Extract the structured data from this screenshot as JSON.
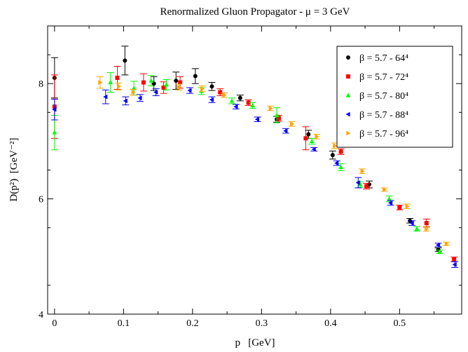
{
  "chart_data": {
    "type": "scatter",
    "title": "Renormalized Gluon Propagator - μ = 3 GeV",
    "xlabel": "p   [GeV]",
    "ylabel": "D(p²)  [GeV⁻²]",
    "xlim": [
      -0.01,
      0.59
    ],
    "ylim": [
      4,
      9
    ],
    "xticks": [
      0,
      0.1,
      0.2,
      0.3,
      0.4,
      0.5
    ],
    "xtick_labels": [
      "0",
      "0.1",
      "0.2",
      "0.3",
      "0.4",
      "0.5"
    ],
    "yticks": [
      4,
      6,
      8
    ],
    "ytick_labels": [
      "4",
      "6",
      "8"
    ],
    "grid": false,
    "legend_position": "top-right",
    "series": [
      {
        "name": "β = 5.7  -  64⁴",
        "color": "#000000",
        "marker": "circle",
        "points": [
          [
            0,
            8.1,
            0.35
          ],
          [
            0.102,
            8.4,
            0.25
          ],
          [
            0.144,
            8.0,
            0.12
          ],
          [
            0.176,
            8.05,
            0.15
          ],
          [
            0.204,
            8.13,
            0.13
          ],
          [
            0.228,
            7.95,
            0.07
          ],
          [
            0.269,
            7.75,
            0.05
          ],
          [
            0.322,
            7.38,
            0.05
          ],
          [
            0.368,
            7.12,
            0.07
          ],
          [
            0.403,
            6.76,
            0.07
          ],
          [
            0.456,
            6.25,
            0.06
          ],
          [
            0.515,
            5.62,
            0.04
          ],
          [
            0.556,
            5.12,
            0.03
          ]
        ]
      },
      {
        "name": "β = 5.7  -  72⁴",
        "color": "#ff0000",
        "marker": "square",
        "points": [
          [
            0,
            7.6,
            0.55
          ],
          [
            0.091,
            8.1,
            0.2
          ],
          [
            0.129,
            8.02,
            0.15
          ],
          [
            0.158,
            7.93,
            0.1
          ],
          [
            0.182,
            8.02,
            0.1
          ],
          [
            0.24,
            7.85,
            0.06
          ],
          [
            0.281,
            7.67,
            0.05
          ],
          [
            0.325,
            7.4,
            0.05
          ],
          [
            0.364,
            7.05,
            0.2
          ],
          [
            0.415,
            6.82,
            0.05
          ],
          [
            0.452,
            6.22,
            0.05
          ],
          [
            0.5,
            5.85,
            0.04
          ],
          [
            0.539,
            5.58,
            0.07
          ],
          [
            0.579,
            4.95,
            0.04
          ]
        ]
      },
      {
        "name": "β = 5.7  -  80⁴",
        "color": "#00ff00",
        "marker": "triangle",
        "points": [
          [
            0,
            7.15,
            0.3
          ],
          [
            0.081,
            8.02,
            0.17
          ],
          [
            0.115,
            7.92,
            0.12
          ],
          [
            0.14,
            8.05,
            0.09
          ],
          [
            0.162,
            7.98,
            0.09
          ],
          [
            0.213,
            7.87,
            0.06
          ],
          [
            0.257,
            7.7,
            0.05
          ],
          [
            0.287,
            7.62,
            0.05
          ],
          [
            0.322,
            7.45,
            0.13
          ],
          [
            0.373,
            7.0,
            0.05
          ],
          [
            0.415,
            6.55,
            0.06
          ],
          [
            0.443,
            6.25,
            0.05
          ],
          [
            0.485,
            6.0,
            0.05
          ],
          [
            0.525,
            5.48,
            0.04
          ],
          [
            0.558,
            5.08,
            0.03
          ]
        ]
      },
      {
        "name": "β = 5.7  -  88⁴",
        "color": "#0000ff",
        "marker": "triangle-left",
        "points": [
          [
            0,
            7.55,
            0.18
          ],
          [
            0.074,
            7.77,
            0.12
          ],
          [
            0.103,
            7.7,
            0.07
          ],
          [
            0.124,
            7.75,
            0.06
          ],
          [
            0.147,
            7.85,
            0.06
          ],
          [
            0.196,
            7.88,
            0.05
          ],
          [
            0.228,
            7.72,
            0.05
          ],
          [
            0.263,
            7.6,
            0.04
          ],
          [
            0.294,
            7.38,
            0.04
          ],
          [
            0.335,
            7.18,
            0.04
          ],
          [
            0.376,
            6.86,
            0.03
          ],
          [
            0.409,
            6.62,
            0.04
          ],
          [
            0.44,
            6.28,
            0.09
          ],
          [
            0.487,
            5.93,
            0.04
          ],
          [
            0.518,
            5.58,
            0.04
          ],
          [
            0.556,
            5.2,
            0.03
          ],
          [
            0.58,
            4.86,
            0.05
          ]
        ]
      },
      {
        "name": "β = 5.7  -  96⁴",
        "color": "#ffa500",
        "marker": "triangle-right",
        "points": [
          [
            0.066,
            8.02,
            0.1
          ],
          [
            0.093,
            7.95,
            0.06
          ],
          [
            0.114,
            7.85,
            0.05
          ],
          [
            0.18,
            7.94,
            0.05
          ],
          [
            0.214,
            7.91,
            0.05
          ],
          [
            0.246,
            7.8,
            0.04
          ],
          [
            0.313,
            7.57,
            0.04
          ],
          [
            0.344,
            7.3,
            0.04
          ],
          [
            0.38,
            7.08,
            0.04
          ],
          [
            0.406,
            6.92,
            0.05
          ],
          [
            0.446,
            6.48,
            0.04
          ],
          [
            0.478,
            6.16,
            0.03
          ],
          [
            0.511,
            5.87,
            0.04
          ],
          [
            0.539,
            5.48,
            0.04
          ],
          [
            0.568,
            5.22,
            0.03
          ]
        ]
      }
    ]
  }
}
